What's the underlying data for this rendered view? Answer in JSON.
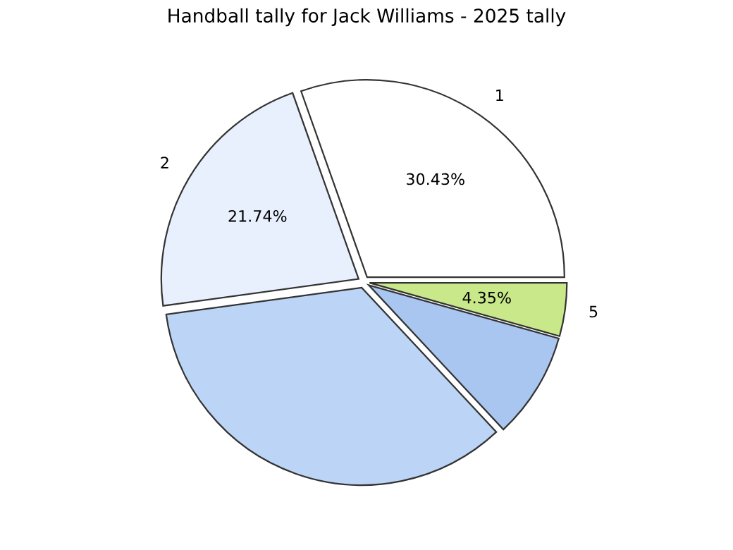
{
  "chart_data": {
    "type": "pie",
    "title": "Handball tally for Jack Williams - 2025 tally",
    "categories": [
      "1",
      "2",
      null,
      null,
      "5"
    ],
    "values": [
      30.43,
      21.74,
      34.78,
      8.7,
      4.35
    ],
    "value_labels": [
      "30.43%",
      "21.74%",
      null,
      null,
      "4.35%"
    ],
    "colors": [
      "#ffffff",
      "#e8f0fe",
      "#bcd4f6",
      "#a9c6f0",
      "#c8e88a"
    ],
    "legend": false
  }
}
